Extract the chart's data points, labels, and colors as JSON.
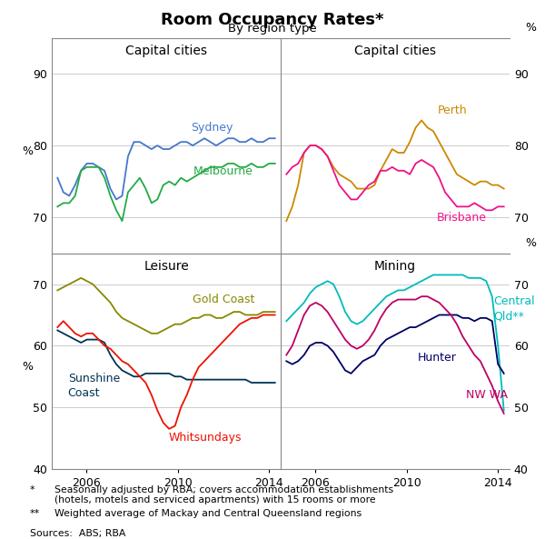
{
  "title": "Room Occupancy Rates*",
  "subtitle": "By region type",
  "fn1_star": "*",
  "fn1_text": "Seasonally adjusted by RBA; covers accommodation establishments\n(hotels, motels and serviced apartments) with 15 rooms or more",
  "fn2_star": "**",
  "fn2_text": "Weighted average of Mackay and Central Queensland regions",
  "sources": "Sources:  ABS; RBA",
  "colors": {
    "sydney": "#4477CC",
    "melbourne": "#22AA44",
    "perth": "#CC8800",
    "brisbane": "#EE1188",
    "gold_coast": "#888800",
    "sunshine_coast": "#003355",
    "whitsundays": "#EE1100",
    "central_qld": "#00BBBB",
    "hunter": "#000066",
    "nw_wa": "#BB0066"
  }
}
